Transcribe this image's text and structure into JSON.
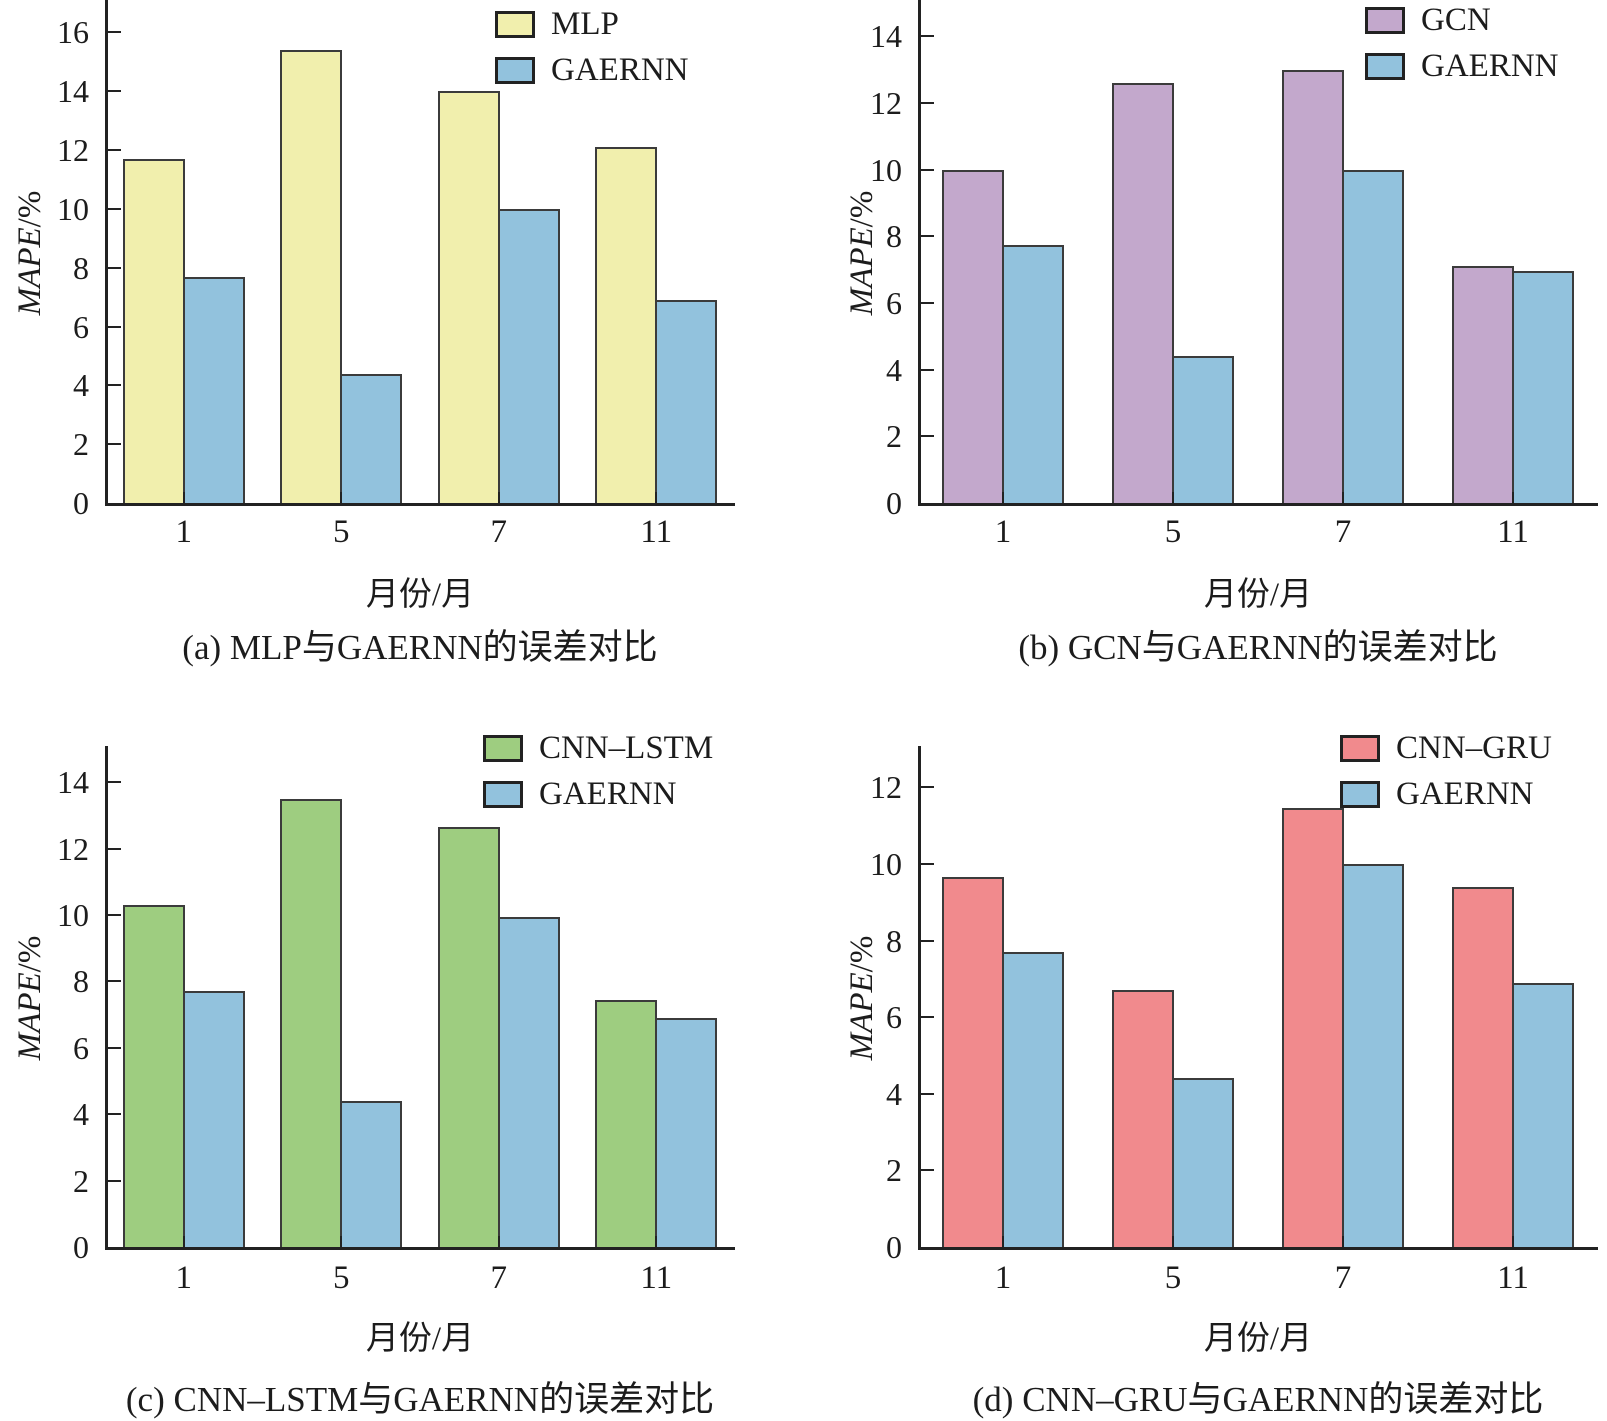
{
  "figure": {
    "background": "#ffffff",
    "axis_color": "#222222",
    "bar_border_color": "#3b3b3b",
    "text_color": "#1c1c1c"
  },
  "chart_data": [
    {
      "panel": "a",
      "type": "bar",
      "caption": "(a) MLP与GAERNN的误差对比",
      "xlabel": "月份/月",
      "ylabel": "MAPE/%",
      "categories": [
        "1",
        "5",
        "7",
        "11"
      ],
      "series": [
        {
          "name": "MLP",
          "color": "#F1EFAD",
          "values": [
            11.7,
            15.4,
            14.0,
            12.1
          ]
        },
        {
          "name": "GAERNN",
          "color": "#92C2DD",
          "values": [
            7.7,
            4.4,
            10.0,
            6.9
          ]
        }
      ],
      "ylim": [
        0,
        17
      ],
      "yticks": [
        0,
        2,
        4,
        6,
        8,
        10,
        12,
        14,
        16
      ],
      "grid": false,
      "legend_position": "top-right"
    },
    {
      "panel": "b",
      "type": "bar",
      "caption": "(b) GCN与GAERNN的误差对比",
      "xlabel": "月份/月",
      "ylabel": "MAPE/%",
      "categories": [
        "1",
        "5",
        "7",
        "11"
      ],
      "series": [
        {
          "name": "GCN",
          "color": "#C3A8CC",
          "values": [
            10.0,
            12.6,
            13.0,
            7.1
          ]
        },
        {
          "name": "GAERNN",
          "color": "#92C2DD",
          "values": [
            7.75,
            4.4,
            10.0,
            6.95
          ]
        }
      ],
      "ylim": [
        0,
        15
      ],
      "yticks": [
        0,
        2,
        4,
        6,
        8,
        10,
        12,
        14
      ],
      "grid": false,
      "legend_position": "top-right"
    },
    {
      "panel": "c",
      "type": "bar",
      "caption": "(c) CNN–LSTM与GAERNN的误差对比",
      "xlabel": "月份/月",
      "ylabel": "MAPE/%",
      "categories": [
        "1",
        "5",
        "7",
        "11"
      ],
      "series": [
        {
          "name": "CNN–LSTM",
          "color": "#9ECD80",
          "values": [
            10.3,
            13.5,
            12.65,
            7.45
          ]
        },
        {
          "name": "GAERNN",
          "color": "#92C2DD",
          "values": [
            7.7,
            4.4,
            9.95,
            6.9
          ]
        }
      ],
      "ylim": [
        0,
        15
      ],
      "yticks": [
        0,
        2,
        4,
        6,
        8,
        10,
        12,
        14
      ],
      "grid": false,
      "legend_position": "top-right"
    },
    {
      "panel": "d",
      "type": "bar",
      "caption": "(d) CNN–GRU与GAERNN的误差对比",
      "xlabel": "月份/月",
      "ylabel": "MAPE/%",
      "categories": [
        "1",
        "5",
        "7",
        "11"
      ],
      "series": [
        {
          "name": "CNN–GRU",
          "color": "#F18A8D",
          "values": [
            9.65,
            6.7,
            11.45,
            9.4
          ]
        },
        {
          "name": "GAERNN",
          "color": "#92C2DD",
          "values": [
            7.7,
            4.4,
            10.0,
            6.9
          ]
        }
      ],
      "ylim": [
        0,
        13
      ],
      "yticks": [
        0,
        2,
        4,
        6,
        8,
        10,
        12
      ],
      "grid": false,
      "legend_position": "top-right"
    }
  ]
}
